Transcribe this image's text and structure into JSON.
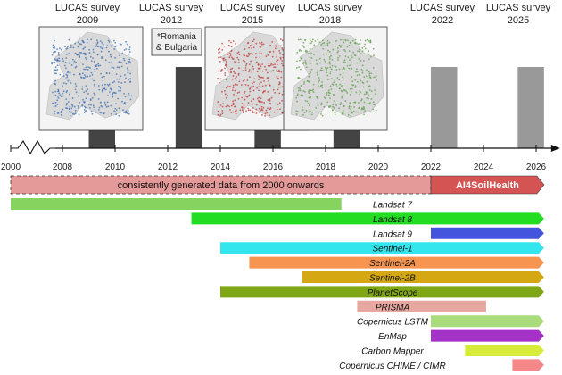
{
  "surveys": [
    {
      "title": "LUCAS survey",
      "year": "2009",
      "position": 2009.0,
      "kind": "map",
      "map_color": "#3d6fb3"
    },
    {
      "title": "LUCAS survey",
      "year": "2012",
      "position": 2012.0,
      "kind": "note",
      "note_lines": [
        "*Romania",
        "& Bulgaria"
      ]
    },
    {
      "title": "LUCAS survey",
      "year": "2015",
      "position": 2015.0,
      "kind": "map",
      "map_color": "#c03a3a"
    },
    {
      "title": "LUCAS survey",
      "year": "2018",
      "position": 2018.0,
      "kind": "map",
      "map_color": "#5e9e4a"
    },
    {
      "title": "LUCAS survey",
      "year": "2022",
      "position": 2022.0,
      "kind": "future"
    },
    {
      "title": "LUCAS survey",
      "year": "2025",
      "position": 2025.0,
      "kind": "future"
    }
  ],
  "survey_bars": [
    {
      "start": 2009.0,
      "end": 2010.0,
      "color": "#444444",
      "top": "lower"
    },
    {
      "start": 2012.3,
      "end": 2013.3,
      "color": "#444444",
      "top": "upper"
    },
    {
      "start": 2015.3,
      "end": 2016.3,
      "color": "#444444",
      "top": "lower"
    },
    {
      "start": 2018.3,
      "end": 2019.3,
      "color": "#444444",
      "top": "lower"
    },
    {
      "start": 2022.0,
      "end": 2023.0,
      "color": "#999999",
      "top": "upper"
    },
    {
      "start": 2025.3,
      "end": 2026.3,
      "color": "#999999",
      "top": "upper"
    }
  ],
  "axis": {
    "ticks": [
      "2000",
      "2008",
      "2010",
      "2012",
      "2014",
      "2016",
      "2018",
      "2020",
      "2022",
      "2024",
      "2026"
    ],
    "tick_values": [
      2000,
      2008,
      2010,
      2012,
      2014,
      2016,
      2018,
      2020,
      2022,
      2024,
      2026
    ],
    "break_between": [
      2000,
      2008
    ]
  },
  "banner": {
    "text": "consistently generated data from 2000 onwards",
    "start": 2000,
    "end": 2022,
    "color": "#e39a98"
  },
  "ai_banner": {
    "text": "AI4SoilHealth",
    "start": 2022,
    "end": 2026.3,
    "color": "#d45454"
  },
  "missions": [
    {
      "name": "Landsat 7",
      "start": 2000,
      "end": 2018.6,
      "color": "#86d45f",
      "arrow": false
    },
    {
      "name": "Landsat 8",
      "start": 2012.9,
      "end": 2026.3,
      "color": "#22dd22",
      "arrow": true
    },
    {
      "name": "Landsat 9",
      "start": 2022.0,
      "end": 2026.3,
      "color": "#4455dd",
      "arrow": true
    },
    {
      "name": "Sentinel-1",
      "start": 2014.0,
      "end": 2026.3,
      "color": "#33e6ee",
      "arrow": true
    },
    {
      "name": "Sentinel-2A",
      "start": 2015.1,
      "end": 2026.3,
      "color": "#f79450",
      "arrow": true
    },
    {
      "name": "Sentinel-2B",
      "start": 2017.1,
      "end": 2026.3,
      "color": "#d5a813",
      "arrow": true
    },
    {
      "name": "PlanetScope",
      "start": 2014.0,
      "end": 2026.3,
      "color": "#7fa614",
      "arrow": true
    },
    {
      "name": "PRISMA",
      "start": 2019.2,
      "end": 2024.1,
      "color": "#e8a8a2",
      "arrow": false
    },
    {
      "name": "Copernicus LSTM",
      "start": 2022.0,
      "end": 2026.3,
      "color": "#a9dc7c",
      "arrow": true
    },
    {
      "name": "EnMap",
      "start": 2022.0,
      "end": 2026.3,
      "color": "#a432c8",
      "arrow": true
    },
    {
      "name": "Carbon Mapper",
      "start": 2023.3,
      "end": 2026.3,
      "color": "#d7ec3a",
      "arrow": true
    },
    {
      "name": "Copernicus CHIME / CIMR",
      "start": 2025.1,
      "end": 2026.3,
      "color": "#f48888",
      "arrow": true
    }
  ]
}
